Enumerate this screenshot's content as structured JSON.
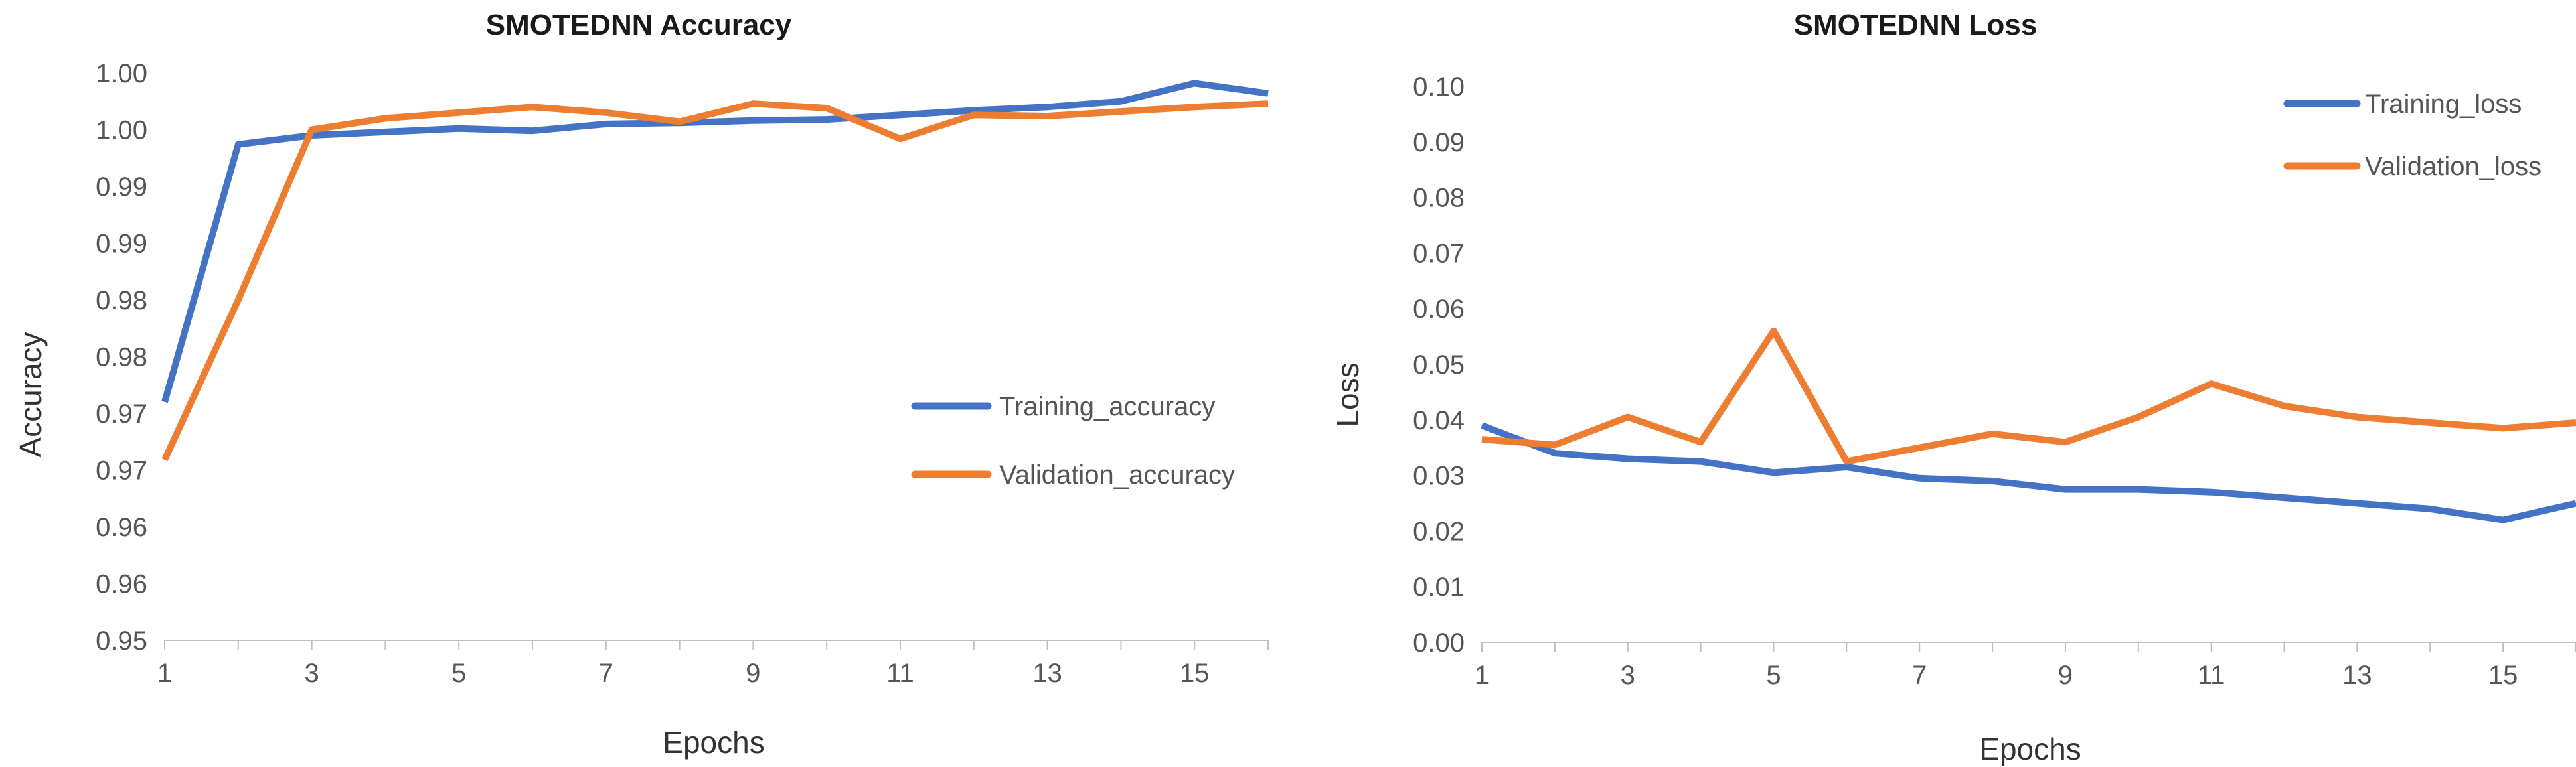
{
  "chart_data": [
    {
      "type": "line",
      "title": "SMOTEDNN Accuracy",
      "xlabel": "Epochs",
      "ylabel": "Accuracy",
      "x": [
        1,
        2,
        3,
        4,
        5,
        6,
        7,
        8,
        9,
        10,
        11,
        12,
        13,
        14,
        15,
        16
      ],
      "x_tick_labels": [
        "1",
        "3",
        "5",
        "7",
        "9",
        "11",
        "13",
        "15"
      ],
      "y_tick_labels": [
        "0.95",
        "0.96",
        "0.96",
        "0.97",
        "0.97",
        "0.98",
        "0.98",
        "0.99",
        "0.99",
        "1.00",
        "1.00"
      ],
      "ylim": [
        0.95,
        1.0
      ],
      "grid": false,
      "legend": "center-right",
      "series": [
        {
          "name": "Training_accuracy",
          "color": "#4472C4",
          "values": [
            0.971,
            0.9937,
            0.9945,
            0.9948,
            0.9951,
            0.9949,
            0.9955,
            0.9956,
            0.9958,
            0.9959,
            0.9963,
            0.9967,
            0.997,
            0.9975,
            0.9991,
            0.9982
          ]
        },
        {
          "name": "Validation_accuracy",
          "color": "#ED7D31",
          "values": [
            0.9659,
            0.98,
            0.995,
            0.996,
            0.9965,
            0.997,
            0.9965,
            0.9957,
            0.9973,
            0.9969,
            0.9942,
            0.9963,
            0.9962,
            0.9966,
            0.997,
            0.9973
          ]
        }
      ]
    },
    {
      "type": "line",
      "title": "SMOTEDNN Loss",
      "xlabel": "Epochs",
      "ylabel": "Loss",
      "x": [
        1,
        2,
        3,
        4,
        5,
        6,
        7,
        8,
        9,
        10,
        11,
        12,
        13,
        14,
        15,
        16
      ],
      "x_tick_labels": [
        "1",
        "3",
        "5",
        "7",
        "9",
        "11",
        "13",
        "15"
      ],
      "y_tick_labels": [
        "0.00",
        "0.01",
        "0.02",
        "0.03",
        "0.04",
        "0.05",
        "0.06",
        "0.07",
        "0.08",
        "0.09",
        "0.10"
      ],
      "ylim": [
        0.0,
        0.1
      ],
      "grid": false,
      "legend": "top-right",
      "series": [
        {
          "name": "Training_loss",
          "color": "#4472C4",
          "values": [
            0.039,
            0.034,
            0.033,
            0.0325,
            0.0305,
            0.0315,
            0.0295,
            0.029,
            0.0275,
            0.0275,
            0.027,
            0.026,
            0.025,
            0.024,
            0.022,
            0.025
          ]
        },
        {
          "name": "Validation_loss",
          "color": "#ED7D31",
          "values": [
            0.0365,
            0.0355,
            0.0405,
            0.036,
            0.056,
            0.0325,
            0.035,
            0.0375,
            0.036,
            0.0405,
            0.0465,
            0.0425,
            0.0405,
            0.0395,
            0.0385,
            0.0395
          ]
        }
      ]
    }
  ]
}
